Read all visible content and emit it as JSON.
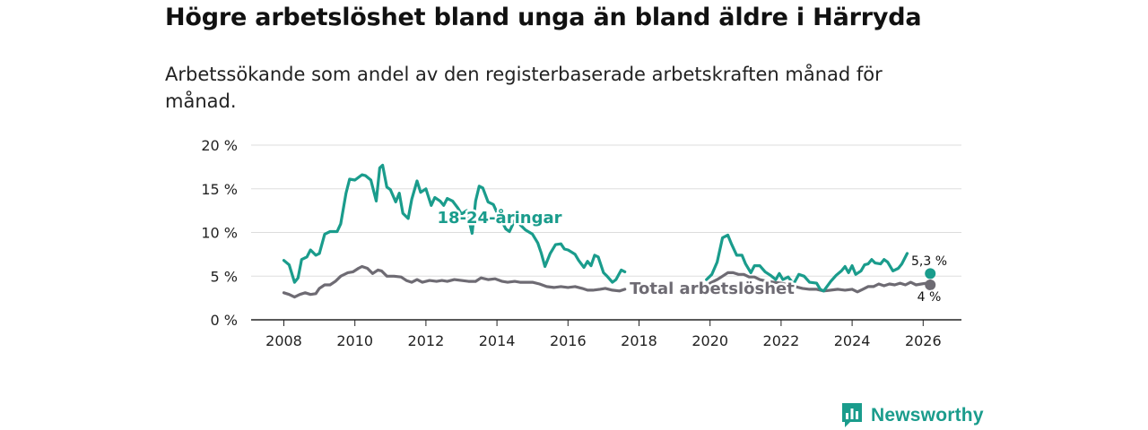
{
  "header": {
    "title": "Högre arbetslöshet bland unga än bland äldre i Härryda",
    "subtitle": "Arbetssökande som andel av den registerbaserade arbetskraften månad för månad."
  },
  "brand": {
    "name": "Newsworthy",
    "icon": "bar-chart-bubble-icon"
  },
  "colors": {
    "youth": "#1a9c8c",
    "total": "#6e6b73",
    "grid": "#dddddd",
    "axis": "#222222"
  },
  "chart_data": {
    "type": "line",
    "title": "Högre arbetslöshet bland unga än bland äldre i Härryda",
    "xlabel": "",
    "ylabel": "",
    "xlim": [
      2007.4,
      2027.0
    ],
    "ylim": [
      0,
      20
    ],
    "x_ticks": [
      2008,
      2010,
      2012,
      2014,
      2016,
      2018,
      2020,
      2022,
      2024,
      2026
    ],
    "y_ticks": [
      {
        "value": 0,
        "label": "0 %"
      },
      {
        "value": 5,
        "label": "5 %"
      },
      {
        "value": 10,
        "label": "10 %"
      },
      {
        "value": 15,
        "label": "15 %"
      },
      {
        "value": 20,
        "label": "20 %"
      }
    ],
    "grid": true,
    "series": [
      {
        "name": "18-24-åringar",
        "label": "18-24-åringar",
        "end_label": "5,3 %",
        "end_x": 2026.2,
        "end_value": 5.3,
        "segments": [
          [
            [
              2008.0,
              6.8
            ],
            [
              2008.15,
              6.3
            ],
            [
              2008.3,
              4.3
            ],
            [
              2008.4,
              4.8
            ],
            [
              2008.5,
              6.9
            ],
            [
              2008.65,
              7.2
            ],
            [
              2008.75,
              8.0
            ],
            [
              2008.9,
              7.4
            ],
            [
              2009.0,
              7.6
            ],
            [
              2009.15,
              9.8
            ],
            [
              2009.3,
              10.1
            ],
            [
              2009.5,
              10.1
            ],
            [
              2009.6,
              11.0
            ],
            [
              2009.75,
              14.5
            ],
            [
              2009.85,
              16.1
            ],
            [
              2010.0,
              16.0
            ],
            [
              2010.2,
              16.6
            ],
            [
              2010.3,
              16.5
            ],
            [
              2010.45,
              16.0
            ],
            [
              2010.6,
              13.6
            ],
            [
              2010.7,
              17.4
            ],
            [
              2010.78,
              17.7
            ],
            [
              2010.9,
              15.2
            ],
            [
              2011.0,
              14.9
            ],
            [
              2011.15,
              13.5
            ],
            [
              2011.25,
              14.5
            ],
            [
              2011.35,
              12.2
            ],
            [
              2011.5,
              11.6
            ],
            [
              2011.6,
              13.8
            ],
            [
              2011.75,
              15.9
            ],
            [
              2011.85,
              14.6
            ],
            [
              2012.0,
              15.0
            ],
            [
              2012.15,
              13.1
            ],
            [
              2012.25,
              14.0
            ],
            [
              2012.4,
              13.6
            ],
            [
              2012.5,
              13.1
            ],
            [
              2012.6,
              13.9
            ],
            [
              2012.75,
              13.6
            ],
            [
              2012.9,
              12.8
            ],
            [
              2013.0,
              12.1
            ],
            [
              2013.15,
              12.5
            ],
            [
              2013.3,
              9.9
            ],
            [
              2013.4,
              13.6
            ],
            [
              2013.5,
              15.3
            ],
            [
              2013.6,
              15.1
            ],
            [
              2013.75,
              13.5
            ],
            [
              2013.9,
              13.2
            ],
            [
              2014.0,
              12.3
            ],
            [
              2014.15,
              11.2
            ],
            [
              2014.25,
              10.4
            ],
            [
              2014.35,
              10.1
            ],
            [
              2014.5,
              11.4
            ],
            [
              2014.65,
              10.9
            ],
            [
              2014.8,
              10.3
            ],
            [
              2015.0,
              9.8
            ],
            [
              2015.15,
              8.8
            ],
            [
              2015.25,
              7.6
            ],
            [
              2015.35,
              6.1
            ],
            [
              2015.5,
              7.6
            ],
            [
              2015.65,
              8.6
            ],
            [
              2015.8,
              8.7
            ],
            [
              2015.9,
              8.1
            ],
            [
              2016.0,
              8.0
            ],
            [
              2016.2,
              7.5
            ],
            [
              2016.3,
              6.8
            ],
            [
              2016.45,
              6.0
            ],
            [
              2016.55,
              6.7
            ],
            [
              2016.65,
              6.2
            ],
            [
              2016.75,
              7.4
            ],
            [
              2016.85,
              7.2
            ],
            [
              2017.0,
              5.4
            ],
            [
              2017.1,
              5.0
            ],
            [
              2017.25,
              4.3
            ],
            [
              2017.35,
              4.6
            ],
            [
              2017.5,
              5.7
            ],
            [
              2017.6,
              5.5
            ]
          ],
          [
            [
              2019.9,
              4.6
            ],
            [
              2020.05,
              5.2
            ],
            [
              2020.2,
              6.6
            ],
            [
              2020.35,
              9.4
            ],
            [
              2020.5,
              9.7
            ],
            [
              2020.6,
              8.7
            ],
            [
              2020.75,
              7.4
            ],
            [
              2020.9,
              7.4
            ],
            [
              2021.0,
              6.4
            ],
            [
              2021.15,
              5.4
            ],
            [
              2021.25,
              6.2
            ],
            [
              2021.4,
              6.2
            ],
            [
              2021.55,
              5.5
            ],
            [
              2021.7,
              5.1
            ],
            [
              2021.85,
              4.6
            ],
            [
              2021.95,
              5.3
            ],
            [
              2022.05,
              4.6
            ],
            [
              2022.2,
              4.9
            ],
            [
              2022.35,
              4.1
            ],
            [
              2022.5,
              5.2
            ],
            [
              2022.65,
              5.0
            ],
            [
              2022.8,
              4.3
            ],
            [
              2023.0,
              4.2
            ],
            [
              2023.1,
              3.5
            ],
            [
              2023.2,
              3.3
            ],
            [
              2023.4,
              4.4
            ],
            [
              2023.55,
              5.1
            ],
            [
              2023.7,
              5.6
            ],
            [
              2023.8,
              6.1
            ],
            [
              2023.9,
              5.4
            ],
            [
              2024.0,
              6.2
            ],
            [
              2024.1,
              5.2
            ],
            [
              2024.25,
              5.6
            ],
            [
              2024.35,
              6.3
            ],
            [
              2024.45,
              6.4
            ],
            [
              2024.55,
              6.9
            ],
            [
              2024.65,
              6.5
            ],
            [
              2024.8,
              6.4
            ],
            [
              2024.9,
              6.9
            ],
            [
              2025.0,
              6.6
            ],
            [
              2025.15,
              5.6
            ],
            [
              2025.3,
              5.9
            ],
            [
              2025.4,
              6.4
            ],
            [
              2025.55,
              7.6
            ]
          ]
        ]
      },
      {
        "name": "Total arbetslöshet",
        "label": "Total arbetslöshet",
        "end_label": "4 %",
        "end_x": 2026.2,
        "end_value": 4.0,
        "segments": [
          [
            [
              2008.0,
              3.1
            ],
            [
              2008.15,
              2.9
            ],
            [
              2008.3,
              2.6
            ],
            [
              2008.45,
              2.9
            ],
            [
              2008.6,
              3.1
            ],
            [
              2008.75,
              2.9
            ],
            [
              2008.9,
              3.0
            ],
            [
              2009.0,
              3.6
            ],
            [
              2009.15,
              4.0
            ],
            [
              2009.3,
              4.0
            ],
            [
              2009.45,
              4.4
            ],
            [
              2009.6,
              5.0
            ],
            [
              2009.8,
              5.4
            ],
            [
              2009.95,
              5.5
            ],
            [
              2010.1,
              5.9
            ],
            [
              2010.2,
              6.1
            ],
            [
              2010.35,
              5.9
            ],
            [
              2010.5,
              5.3
            ],
            [
              2010.65,
              5.7
            ],
            [
              2010.75,
              5.6
            ],
            [
              2010.9,
              5.0
            ],
            [
              2011.1,
              5.0
            ],
            [
              2011.3,
              4.9
            ],
            [
              2011.45,
              4.5
            ],
            [
              2011.6,
              4.3
            ],
            [
              2011.75,
              4.6
            ],
            [
              2011.9,
              4.3
            ],
            [
              2012.1,
              4.5
            ],
            [
              2012.3,
              4.4
            ],
            [
              2012.45,
              4.5
            ],
            [
              2012.6,
              4.4
            ],
            [
              2012.8,
              4.6
            ],
            [
              2013.0,
              4.5
            ],
            [
              2013.2,
              4.4
            ],
            [
              2013.4,
              4.4
            ],
            [
              2013.55,
              4.8
            ],
            [
              2013.75,
              4.6
            ],
            [
              2013.95,
              4.7
            ],
            [
              2014.15,
              4.4
            ],
            [
              2014.3,
              4.3
            ],
            [
              2014.5,
              4.4
            ],
            [
              2014.65,
              4.3
            ],
            [
              2014.85,
              4.3
            ],
            [
              2015.0,
              4.3
            ],
            [
              2015.2,
              4.1
            ],
            [
              2015.4,
              3.8
            ],
            [
              2015.6,
              3.7
            ],
            [
              2015.8,
              3.8
            ],
            [
              2016.0,
              3.7
            ],
            [
              2016.2,
              3.8
            ],
            [
              2016.4,
              3.6
            ],
            [
              2016.55,
              3.4
            ],
            [
              2016.7,
              3.4
            ],
            [
              2016.9,
              3.5
            ],
            [
              2017.05,
              3.6
            ],
            [
              2017.25,
              3.4
            ],
            [
              2017.45,
              3.3
            ],
            [
              2017.6,
              3.5
            ]
          ],
          [
            [
              2020.0,
              4.2
            ],
            [
              2020.2,
              4.6
            ],
            [
              2020.35,
              5.0
            ],
            [
              2020.5,
              5.4
            ],
            [
              2020.65,
              5.4
            ],
            [
              2020.8,
              5.2
            ],
            [
              2020.95,
              5.2
            ],
            [
              2021.1,
              4.9
            ],
            [
              2021.25,
              4.9
            ],
            [
              2021.4,
              4.6
            ],
            [
              2021.6,
              4.4
            ],
            [
              2021.8,
              4.3
            ],
            [
              2022.0,
              4.2
            ],
            [
              2022.2,
              4.0
            ],
            [
              2022.4,
              3.8
            ],
            [
              2022.6,
              3.6
            ],
            [
              2022.8,
              3.5
            ],
            [
              2023.0,
              3.5
            ],
            [
              2023.2,
              3.3
            ],
            [
              2023.4,
              3.4
            ],
            [
              2023.6,
              3.5
            ],
            [
              2023.8,
              3.4
            ],
            [
              2024.0,
              3.5
            ],
            [
              2024.15,
              3.2
            ],
            [
              2024.3,
              3.5
            ],
            [
              2024.45,
              3.8
            ],
            [
              2024.6,
              3.8
            ],
            [
              2024.75,
              4.1
            ],
            [
              2024.9,
              3.9
            ],
            [
              2025.05,
              4.1
            ],
            [
              2025.2,
              4.0
            ],
            [
              2025.35,
              4.2
            ],
            [
              2025.5,
              4.0
            ],
            [
              2025.65,
              4.3
            ],
            [
              2025.8,
              4.0
            ],
            [
              2025.95,
              4.1
            ],
            [
              2026.1,
              4.2
            ]
          ]
        ]
      }
    ]
  }
}
